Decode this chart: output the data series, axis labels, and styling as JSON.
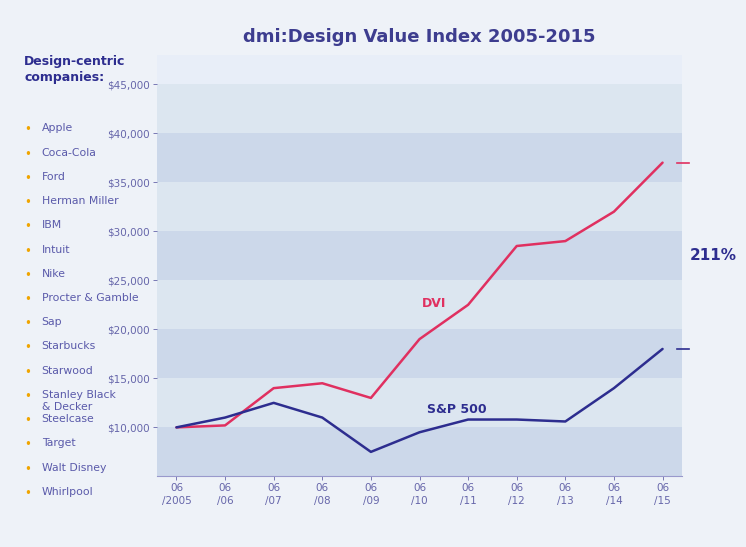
{
  "title": "dmi:Design Value Index 2005-2015",
  "title_color": "#3d3d8f",
  "bg_color": "#eef2f8",
  "left_panel_color": "#e6ecf5",
  "plot_bg_color": "#e8eef8",
  "stripe_color_dark": "#ccd8ea",
  "stripe_color_light": "#dce6f0",
  "companies_header": "Design-centric\ncompanies:",
  "companies": [
    "Apple",
    "Coca-Cola",
    "Ford",
    "Herman Miller",
    "IBM",
    "Intuit",
    "Nike",
    "Procter & Gamble",
    "Sap",
    "Starbucks",
    "Starwood",
    "Stanley Black\n& Decker",
    "Steelcase",
    "Target",
    "Walt Disney",
    "Whirlpool"
  ],
  "bullet_color": "#f0a500",
  "company_text_color": "#5a5aaa",
  "header_text_color": "#2d2d8f",
  "x_labels": [
    "06\n/2005",
    "06\n/06",
    "06\n/07",
    "06\n/08",
    "06\n/09",
    "06\n/10",
    "06\n/11",
    "06\n/12",
    "06\n/13",
    "06\n/14",
    "06\n/15"
  ],
  "dvi_values": [
    10000,
    10200,
    14000,
    14500,
    13000,
    19000,
    22500,
    28500,
    29000,
    32000,
    37000
  ],
  "sp500_values": [
    10000,
    11000,
    12500,
    11000,
    7500,
    9500,
    10800,
    10800,
    10600,
    14000,
    18000
  ],
  "dvi_color": "#e03060",
  "sp500_color": "#2d2d8f",
  "dvi_label": "DVI",
  "sp500_label": "S&P 500",
  "pct_label": "211%",
  "ylim": [
    5000,
    48000
  ],
  "yticks": [
    10000,
    15000,
    20000,
    25000,
    30000,
    35000,
    40000,
    45000
  ],
  "tick_color": "#6666aa",
  "axis_color": "#9999cc",
  "line_width": 1.8
}
